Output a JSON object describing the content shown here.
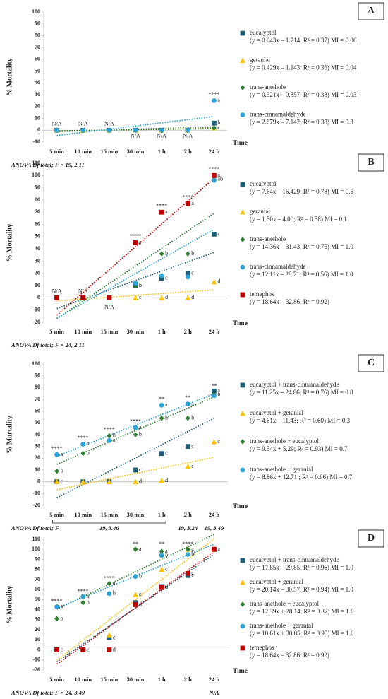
{
  "chart_data": [
    {
      "type": "scatter",
      "label": "A",
      "ylabel": "% Mortality",
      "xlabel": "Time",
      "grid": false,
      "categories": [
        "5 min",
        "10 min",
        "15 min",
        "30 min",
        "1 h",
        "2 h",
        "24 h"
      ],
      "ylim": [
        -10,
        100
      ],
      "yticks": [
        -10,
        0,
        10,
        20,
        30,
        40,
        50,
        60,
        70,
        80,
        90,
        100
      ],
      "series": [
        {
          "name": "eucalyptol",
          "formula": "(y = 0.643x – 1.714; R² = 0.37) MI = 0.06",
          "color": "#1f5f7a",
          "marker": "square",
          "values": [
            0,
            0,
            0,
            0,
            0,
            0,
            6
          ],
          "letters": [
            null,
            null,
            null,
            null,
            null,
            null,
            "b"
          ],
          "trend": {
            "slope": 0.643,
            "intercept": -1.714
          }
        },
        {
          "name": "geranial",
          "formula": "(y = 0.429x – 1.143; R² = 0.36) MI = 0.04",
          "color": "#ffc000",
          "marker": "triangle",
          "values": [
            0,
            0,
            0,
            0,
            0,
            0,
            2
          ],
          "letters": [
            null,
            null,
            null,
            null,
            null,
            null,
            null
          ],
          "trend": {
            "slope": 0.429,
            "intercept": -1.143
          }
        },
        {
          "name": "trans-anethole",
          "formula": "(y = 0.321x – 0.857; R² = 0.38) MI = 0.03",
          "color": "#2e7d32",
          "marker": "diamond",
          "values": [
            0,
            0,
            0,
            0,
            0,
            0,
            2
          ],
          "letters": [
            null,
            null,
            null,
            null,
            null,
            null,
            "c"
          ],
          "trend": {
            "slope": 0.321,
            "intercept": -0.857
          }
        },
        {
          "name": "trans-cinnamaldehyde",
          "formula": "(y = 2.679x – 7.142; R² = 0.38) MI = 0.3",
          "color": "#2ea3d6",
          "marker": "circle",
          "values": [
            0,
            0,
            0,
            0,
            0,
            0,
            25
          ],
          "letters": [
            null,
            null,
            null,
            null,
            null,
            null,
            "a"
          ],
          "trend": {
            "slope": 2.679,
            "intercept": -7.142
          }
        }
      ],
      "annotations": [
        {
          "text": "N/A",
          "category": "5 min",
          "y": 5
        },
        {
          "text": "N/A",
          "category": "10 min",
          "y": 5
        },
        {
          "text": "N/A",
          "category": "15 min",
          "y": 5
        },
        {
          "text": "N/A",
          "category": "30 min",
          "y": -5
        },
        {
          "text": "N/A",
          "category": "1 h",
          "y": -5
        },
        {
          "text": "N/A",
          "category": "2 h",
          "y": -5
        },
        {
          "text": "****",
          "category": "24 h",
          "y": 30
        }
      ],
      "footer": "ANOVA Df total; F = 19, 2.11"
    },
    {
      "type": "scatter",
      "label": "B",
      "ylabel": "% Mortality",
      "xlabel": "Time",
      "grid": false,
      "categories": [
        "5 min",
        "10 min",
        "15 min",
        "30 min",
        "1 h",
        "2 h",
        "24 h"
      ],
      "ylim": [
        -20,
        110
      ],
      "yticks": [
        -20,
        -10,
        0,
        10,
        20,
        30,
        40,
        50,
        60,
        70,
        80,
        90,
        100,
        110
      ],
      "series": [
        {
          "name": "eucalyptol",
          "formula": "(y = 7.64x – 16.429; R² = 0.78) MI = 0.5",
          "color": "#1f5f7a",
          "marker": "square",
          "values": [
            0,
            0,
            0,
            10,
            16,
            20,
            52
          ],
          "letters": [
            null,
            null,
            null,
            "c",
            "c",
            "c",
            "c"
          ],
          "trend": {
            "slope": 7.64,
            "intercept": -16.429
          }
        },
        {
          "name": "geranial",
          "formula": "(y = 1.50x – 4.00; R² = 0.38) MI = 0.1",
          "color": "#ffc000",
          "marker": "triangle",
          "values": [
            0,
            0,
            0,
            0,
            0,
            0,
            13
          ],
          "letters": [
            null,
            null,
            null,
            "c",
            "d",
            "d",
            "d"
          ],
          "trend": {
            "slope": 1.5,
            "intercept": -4
          }
        },
        {
          "name": "trans-anethole",
          "formula": "(y = 14.36x – 31.43; R² = 0.76) MI = 1.0",
          "color": "#2e7d32",
          "marker": "diamond",
          "values": [
            0,
            0,
            0,
            10,
            36,
            36,
            97
          ],
          "letters": [
            null,
            null,
            null,
            "b",
            "b",
            "b",
            "ab"
          ],
          "trend": {
            "slope": 14.36,
            "intercept": -31.43
          }
        },
        {
          "name": "trans-cinnamaldehyde",
          "formula": "(y = 12.11x – 28.71; R² = 0.56) MI = 1.0",
          "color": "#2ea3d6",
          "marker": "circle",
          "values": [
            0,
            0,
            0,
            12,
            18,
            17,
            96
          ],
          "letters": [
            null,
            null,
            null,
            null,
            null,
            null,
            null
          ],
          "trend": {
            "slope": 12.11,
            "intercept": -28.71
          }
        },
        {
          "name": "temephos",
          "formula": "(y = 18.64x – 32.86; R² = 0.92)",
          "color": "#c00000",
          "marker": "square",
          "values": [
            0,
            0,
            0,
            45,
            70,
            77,
            100
          ],
          "letters": [
            null,
            null,
            null,
            "a",
            "a",
            "a",
            "a"
          ],
          "trend": {
            "slope": 18.64,
            "intercept": -32.86
          }
        }
      ],
      "annotations": [
        {
          "text": "N/A",
          "category": "5 min",
          "y": 5
        },
        {
          "text": "N/A",
          "category": "10 min",
          "y": 5
        },
        {
          "text": "N/A",
          "category": "15 min",
          "y": -8
        },
        {
          "text": "****",
          "category": "30 min",
          "y": 50
        },
        {
          "text": "****",
          "category": "1 h",
          "y": 75
        },
        {
          "text": "****",
          "category": "2 h",
          "y": 82
        },
        {
          "text": "****",
          "category": "24 h",
          "y": 105
        }
      ],
      "footer": "ANOVA Df total; F = 24, 2.11"
    },
    {
      "type": "scatter",
      "label": "C",
      "ylabel": "% Mortality",
      "xlabel": "Time",
      "grid": false,
      "categories": [
        "5 min",
        "10 min",
        "15 min",
        "30 min",
        "1 h",
        "2 h",
        "24 h"
      ],
      "ylim": [
        -20,
        100
      ],
      "yticks": [
        -20,
        -10,
        0,
        10,
        20,
        30,
        40,
        50,
        60,
        70,
        80,
        90,
        100
      ],
      "series": [
        {
          "name": "eucalyptol + trans-cinnamaldehyde",
          "formula": "(y = 11.25x – 24.86; R² = 0.76) MI = 0.8",
          "color": "#1f5f7a",
          "marker": "square",
          "values": [
            0,
            0,
            0,
            10,
            24,
            30,
            77
          ],
          "letters": [
            null,
            null,
            null,
            "c",
            "c",
            "c",
            "a"
          ],
          "trend": {
            "slope": 11.25,
            "intercept": -24.86
          }
        },
        {
          "name": "eucalyptol + geranial",
          "formula": "(y = 4.61x – 11.43; R² = 0.60) MI = 0.3",
          "color": "#ffc000",
          "marker": "triangle",
          "values": [
            0,
            0,
            0,
            0,
            1,
            13,
            34
          ],
          "letters": [
            "c",
            null,
            null,
            "d",
            "d",
            "c",
            "c"
          ],
          "trend": {
            "slope": 4.61,
            "intercept": -11.43
          }
        },
        {
          "name": "trans-anethole + eucalyptol",
          "formula": "(y = 9.54x + 5.29; R² = 0.93) MI = 0.7",
          "color": "#2e7d32",
          "marker": "diamond",
          "values": [
            9,
            24,
            39,
            40,
            54,
            54,
            74
          ],
          "letters": [
            "b",
            "b",
            "b",
            "b",
            "b",
            "b",
            "b"
          ],
          "trend": {
            "slope": 9.54,
            "intercept": 5.29
          }
        },
        {
          "name": "trans-anethole + geranial",
          "formula": "(y = 8.86x + 12.71 ; R² = 0.96) MI = 0.7",
          "color": "#2ea3d6",
          "marker": "circle",
          "values": [
            23,
            32,
            35,
            46,
            65,
            66,
            73
          ],
          "letters": [
            "a",
            "a",
            "a",
            "a",
            "a",
            "a",
            null
          ],
          "trend": {
            "slope": 8.86,
            "intercept": 12.71
          }
        }
      ],
      "annotations": [
        {
          "text": "****",
          "category": "5 min",
          "y": 28
        },
        {
          "text": "****",
          "category": "10 min",
          "y": 37
        },
        {
          "text": "****",
          "category": "15 min",
          "y": 44
        },
        {
          "text": "****",
          "category": "30 min",
          "y": 51
        },
        {
          "text": "**",
          "category": "1 h",
          "y": 70
        },
        {
          "text": "**",
          "category": "2 h",
          "y": 71
        },
        {
          "text": "**",
          "category": "24 h",
          "y": 81
        }
      ],
      "footer": "ANOVA Df total; F",
      "footer_notes": [
        {
          "text": "19, 3.46",
          "category": "15 min"
        },
        {
          "text": "19, 3.24",
          "category": "2 h"
        },
        {
          "text": "19, 3.49",
          "category": "24 h"
        }
      ]
    },
    {
      "type": "scatter",
      "label": "D",
      "ylabel": "% Mortality",
      "xlabel": "Time",
      "grid": false,
      "categories": [
        "5 min",
        "10 min",
        "15 min",
        "30 min",
        "1 h",
        "2 h",
        "24 h"
      ],
      "ylim": [
        -20,
        110
      ],
      "yticks": [
        -20,
        -10,
        0,
        10,
        20,
        30,
        40,
        50,
        60,
        70,
        80,
        90,
        100,
        110
      ],
      "series": [
        {
          "name": "eucalyptol + trans-cinnamaldehyde",
          "formula": "(y = 17.85x – 29.85; R² = 0.96) MI = 1.0",
          "color": "#1f5f7a",
          "marker": "square",
          "values": [
            0,
            0,
            12,
            47,
            63,
            74,
            100
          ],
          "letters": [
            null,
            null,
            "c",
            null,
            "c",
            "c",
            null
          ],
          "trend": {
            "slope": 17.85,
            "intercept": -29.85
          }
        },
        {
          "name": "eucalyptol + geranial",
          "formula": "(y = 20.14x – 30.57; R² = 0.94) MI = 1.0",
          "color": "#ffc000",
          "marker": "triangle",
          "values": [
            0,
            0,
            15,
            55,
            80,
            100,
            100
          ],
          "letters": [
            null,
            null,
            null,
            "c",
            "c",
            null,
            null
          ],
          "trend": {
            "slope": 20.14,
            "intercept": -30.57
          }
        },
        {
          "name": "trans-anethole + eucalyptol",
          "formula": "(y = 12.39x + 28.14; R² = 0.82) MI = 1.0",
          "color": "#2e7d32",
          "marker": "diamond",
          "values": [
            31,
            47,
            66,
            100,
            98,
            100,
            100
          ],
          "letters": [
            "b",
            "b",
            "a",
            "a",
            "a",
            "a",
            null
          ],
          "trend": {
            "slope": 12.39,
            "intercept": 28.14
          }
        },
        {
          "name": "trans-anethole + geranial",
          "formula": "(y = 10.61x + 30.85; R² = 0.95) MI = 1.0",
          "color": "#2ea3d6",
          "marker": "circle",
          "values": [
            43,
            53,
            56,
            73,
            94,
            95,
            100
          ],
          "letters": [
            "a",
            "a",
            "b",
            "b",
            "b",
            "b",
            null
          ],
          "trend": {
            "slope": 10.61,
            "intercept": 30.85
          }
        },
        {
          "name": "temephos",
          "formula": "(y = 18.64x – 32.86; R² = 0.92)",
          "color": "#c00000",
          "marker": "square",
          "values": [
            0,
            0,
            0,
            45,
            62,
            76,
            100
          ],
          "letters": [
            "c",
            "c",
            "d",
            "d",
            "d",
            "c",
            "a"
          ],
          "trend": {
            "slope": 18.64,
            "intercept": -32.86
          }
        }
      ],
      "annotations": [
        {
          "text": "****",
          "category": "5 min",
          "y": 48
        },
        {
          "text": "****",
          "category": "10 min",
          "y": 58
        },
        {
          "text": "****",
          "category": "15 min",
          "y": 71
        },
        {
          "text": "**",
          "category": "30 min",
          "y": 105
        },
        {
          "text": "**",
          "category": "1 h",
          "y": 105
        },
        {
          "text": "****",
          "category": "2 h",
          "y": 105
        }
      ],
      "footer": "ANOVA Df total; F = 24, 3.49",
      "footer_notes": [
        {
          "text": "N/A",
          "category": "24 h"
        }
      ]
    }
  ]
}
